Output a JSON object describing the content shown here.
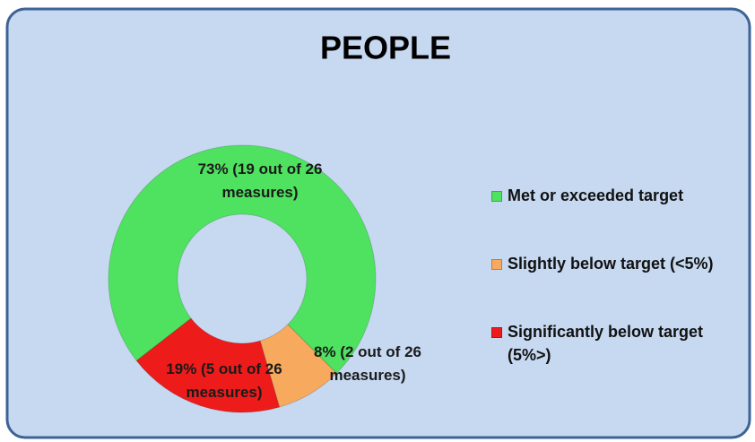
{
  "chart_data": {
    "type": "donut",
    "title": "PEOPLE",
    "categories": [
      "Met or exceeded target",
      "Slightly below target (<5%)",
      "Significantly below target (5%>)"
    ],
    "values": [
      73,
      8,
      19
    ],
    "value_labels": [
      "73% (19 out of 26 measures)",
      "8% (2 out of 26 measures)",
      "19% (5 out of 26 measures)"
    ],
    "colors": [
      "#4fe260",
      "#f7a95e",
      "#ee1b1b"
    ],
    "legend": "right"
  }
}
